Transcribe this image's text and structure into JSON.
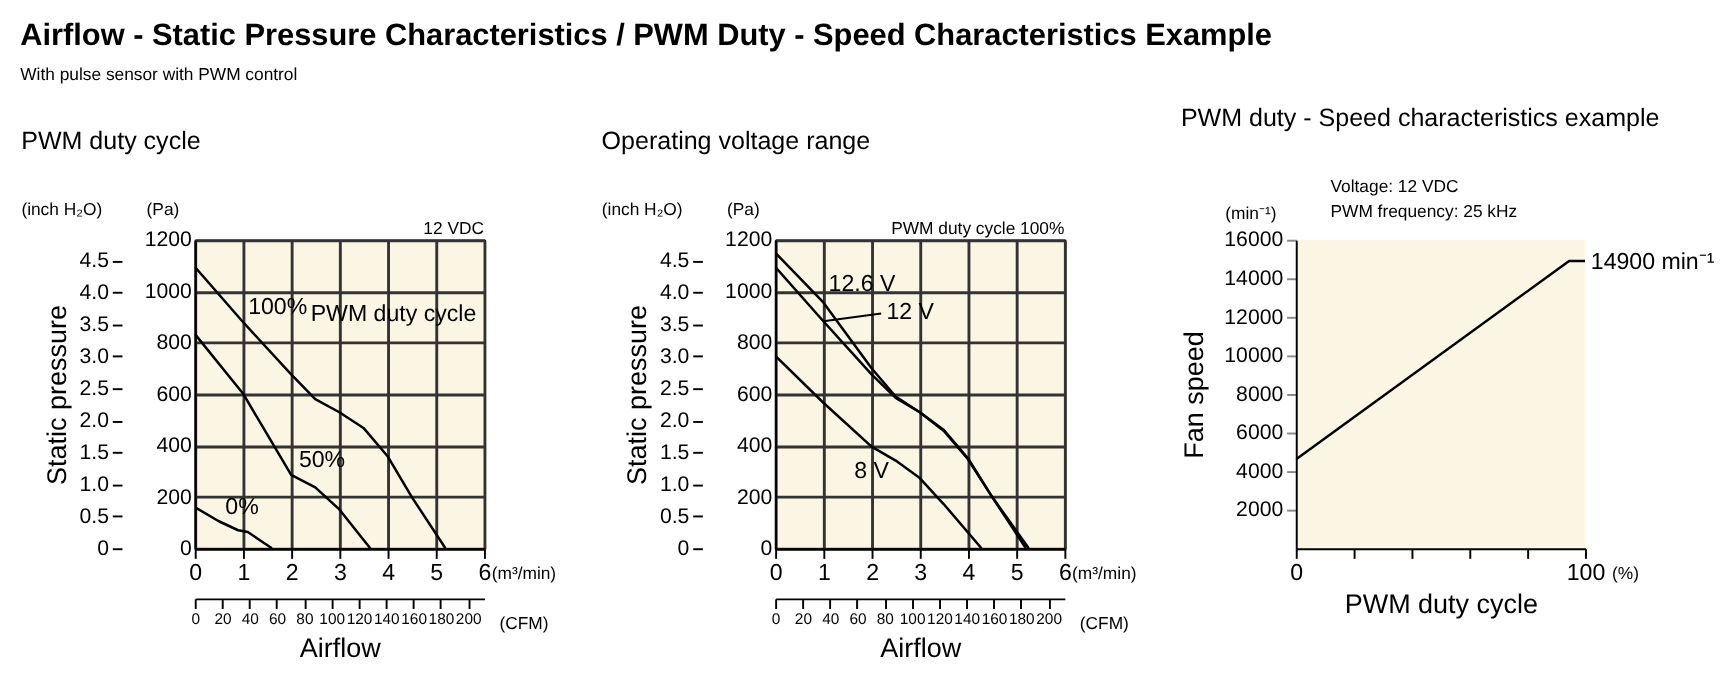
{
  "chart_data": [
    {
      "type": "other",
      "title": "Airflow - Static Pressure Characteristics / PWM Duty - Speed Characteristics Example",
      "subtitle": "With pulse sensor with PWM control"
    },
    {
      "type": "line",
      "title": "PWM duty cycle",
      "xlabel": "Airflow",
      "y2label": "Static pressure",
      "xlim": [
        0,
        6
      ],
      "xticks": [
        0,
        1,
        2,
        3,
        4,
        5,
        6
      ],
      "ylim": [
        0,
        1200
      ],
      "yticks": [
        0,
        200,
        400,
        600,
        800,
        1000,
        1200
      ],
      "y2lim": [
        0,
        4.82
      ],
      "y2ticks": [
        0,
        0.5,
        {
          "value": 1,
          "label": "1.0"
        },
        1.5,
        {
          "value": 2,
          "label": "2.0"
        },
        2.5,
        {
          "value": 3,
          "label": "3.0"
        },
        3.5,
        {
          "value": 4,
          "label": "4.0"
        },
        4.5
      ],
      "x2lim": [
        0,
        211.9
      ],
      "x2ticks": [
        0,
        20,
        40,
        60,
        80,
        100,
        120,
        140,
        160,
        180,
        200
      ],
      "grid": true,
      "line_style": "solid",
      "series": [
        {
          "name": "0%",
          "color": "#000000",
          "x": [
            0,
            0.5,
            0.9,
            1.1,
            1.6
          ],
          "values": [
            160,
            105,
            70,
            63,
            0
          ]
        },
        {
          "name": "100%",
          "color": "#000000",
          "x": [
            0,
            1,
            2,
            2.5,
            3,
            3.5,
            4,
            4.5,
            5.2
          ],
          "values": [
            1095,
            880,
            676,
            580,
            529,
            468,
            358,
            200,
            0
          ]
        },
        {
          "name": "50%",
          "color": "#000000",
          "x": [
            0,
            1,
            1.5,
            2,
            2.5,
            3,
            3.64
          ],
          "values": [
            834,
            602,
            444,
            285,
            237,
            151,
            0
          ]
        }
      ],
      "annotations": [
        "PWM duty cycle",
        "12 VDC",
        "(Pa)",
        "(inch H₂O)",
        "(m³/min)",
        "(CFM)"
      ]
    },
    {
      "type": "line",
      "title": "Operating voltage range",
      "xlabel": "Airflow",
      "y2label": "Static pressure",
      "xlim": [
        0,
        6
      ],
      "xticks": [
        0,
        1,
        2,
        3,
        4,
        5,
        6
      ],
      "ylim": [
        0,
        1200
      ],
      "yticks": [
        0,
        200,
        400,
        600,
        800,
        1000,
        1200
      ],
      "y2lim": [
        0,
        4.82
      ],
      "y2ticks": [
        0,
        0.5,
        {
          "value": 1,
          "label": "1.0"
        },
        1.5,
        {
          "value": 2,
          "label": "2.0"
        },
        2.5,
        {
          "value": 3,
          "label": "3.0"
        },
        3.5,
        {
          "value": 4,
          "label": "4.0"
        },
        4.5
      ],
      "x2lim": [
        0,
        211.9
      ],
      "x2ticks": [
        0,
        20,
        40,
        60,
        80,
        100,
        120,
        140,
        160,
        180,
        200
      ],
      "grid": true,
      "line_style": "solid",
      "series": [
        {
          "name": "12.6 V",
          "color": "#000000",
          "x": [
            0,
            1,
            2,
            2.5,
            3,
            3.5,
            4,
            4.5,
            5.26
          ],
          "values": [
            1150,
            956,
            700,
            590,
            529,
            456,
            346,
            200,
            0
          ]
        },
        {
          "name": "12 V",
          "color": "#000000",
          "x": [
            0,
            1,
            2,
            2.5,
            3,
            3.5,
            4,
            4.5,
            5.2
          ],
          "values": [
            1095,
            883,
            676,
            585,
            529,
            460,
            350,
            200,
            0
          ]
        },
        {
          "name": "8 V",
          "color": "#000000",
          "x": [
            0,
            1,
            2,
            2.5,
            3,
            3.5,
            4.28
          ],
          "values": [
            749,
            566,
            395,
            341,
            273,
            171,
            0
          ]
        }
      ],
      "annotations": [
        "PWM duty cycle 100%",
        "(Pa)",
        "(inch H₂O)",
        "(m³/min)",
        "(CFM)"
      ]
    },
    {
      "type": "line",
      "title": "PWM duty - Speed characteristics example",
      "xlabel": "PWM duty cycle",
      "ylabel": "Fan speed",
      "xlim": [
        0,
        100
      ],
      "xticks": [
        0,
        {
          "value": 20,
          "label": null
        },
        {
          "value": 40,
          "label": null
        },
        {
          "value": 60,
          "label": null
        },
        {
          "value": 80,
          "label": null
        },
        100
      ],
      "ylim": [
        0,
        16000
      ],
      "yticks": [
        2000,
        4000,
        6000,
        8000,
        10000,
        12000,
        14000,
        16000
      ],
      "grid": false,
      "line_style": "solid",
      "series": [
        {
          "color": "#000000",
          "x": [
            0,
            94.5,
            100
          ],
          "values": [
            4600,
            14900,
            14900
          ]
        }
      ],
      "annotations": [
        {
          "text": "14900 min⁻¹",
          "x": 100,
          "y": 14900
        },
        "Voltage: 12 VDC",
        "PWM frequency: 25 kHz",
        "(min⁻¹)",
        "(%)"
      ]
    }
  ]
}
